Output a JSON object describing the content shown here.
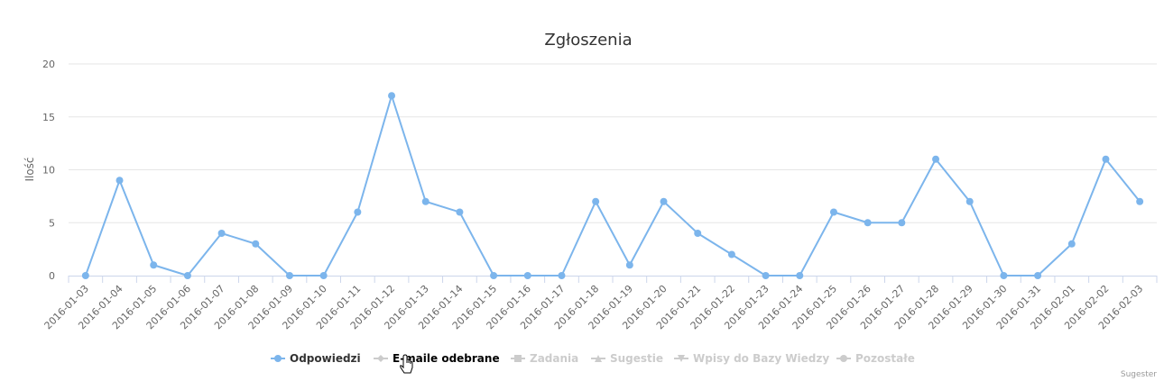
{
  "chart_data": {
    "type": "line",
    "title": "Zgłoszenia",
    "xlabel": "",
    "ylabel": "Ilość",
    "ylim": [
      0,
      20
    ],
    "yticks": [
      0,
      5,
      10,
      15,
      20
    ],
    "grid": true,
    "legend_position": "bottom",
    "categories": [
      "2016-01-03",
      "2016-01-04",
      "2016-01-05",
      "2016-01-06",
      "2016-01-07",
      "2016-01-08",
      "2016-01-09",
      "2016-01-10",
      "2016-01-11",
      "2016-01-12",
      "2016-01-13",
      "2016-01-14",
      "2016-01-15",
      "2016-01-16",
      "2016-01-17",
      "2016-01-18",
      "2016-01-19",
      "2016-01-20",
      "2016-01-21",
      "2016-01-22",
      "2016-01-23",
      "2016-01-24",
      "2016-01-25",
      "2016-01-26",
      "2016-01-27",
      "2016-01-28",
      "2016-01-29",
      "2016-01-30",
      "2016-01-31",
      "2016-02-01",
      "2016-02-02",
      "2016-02-03"
    ],
    "series": [
      {
        "name": "Odpowiedzi",
        "visible": true,
        "color": "#7cb5ec",
        "marker": "circle",
        "values": [
          0,
          9,
          1,
          0,
          4,
          3,
          0,
          0,
          6,
          17,
          7,
          6,
          0,
          0,
          0,
          7,
          1,
          7,
          4,
          2,
          0,
          0,
          6,
          5,
          5,
          11,
          7,
          0,
          0,
          3,
          11,
          7
        ]
      },
      {
        "name": "E-maile odebrane",
        "visible": false,
        "color": "#cccccc",
        "marker": "diamond",
        "hovered": true
      },
      {
        "name": "Zadania",
        "visible": false,
        "color": "#cccccc",
        "marker": "square"
      },
      {
        "name": "Sugestie",
        "visible": false,
        "color": "#cccccc",
        "marker": "triangle"
      },
      {
        "name": "Wpisy do Bazy Wiedzy",
        "visible": false,
        "color": "#cccccc",
        "marker": "triangle-down"
      },
      {
        "name": "Pozostałe",
        "visible": false,
        "color": "#cccccc",
        "marker": "circle"
      }
    ]
  },
  "credit": "Sugester",
  "colors": {
    "active_legend_text": "#333333",
    "hover_legend_text": "#000000",
    "hidden_legend_text": "#cccccc",
    "line": "#7cb5ec"
  }
}
